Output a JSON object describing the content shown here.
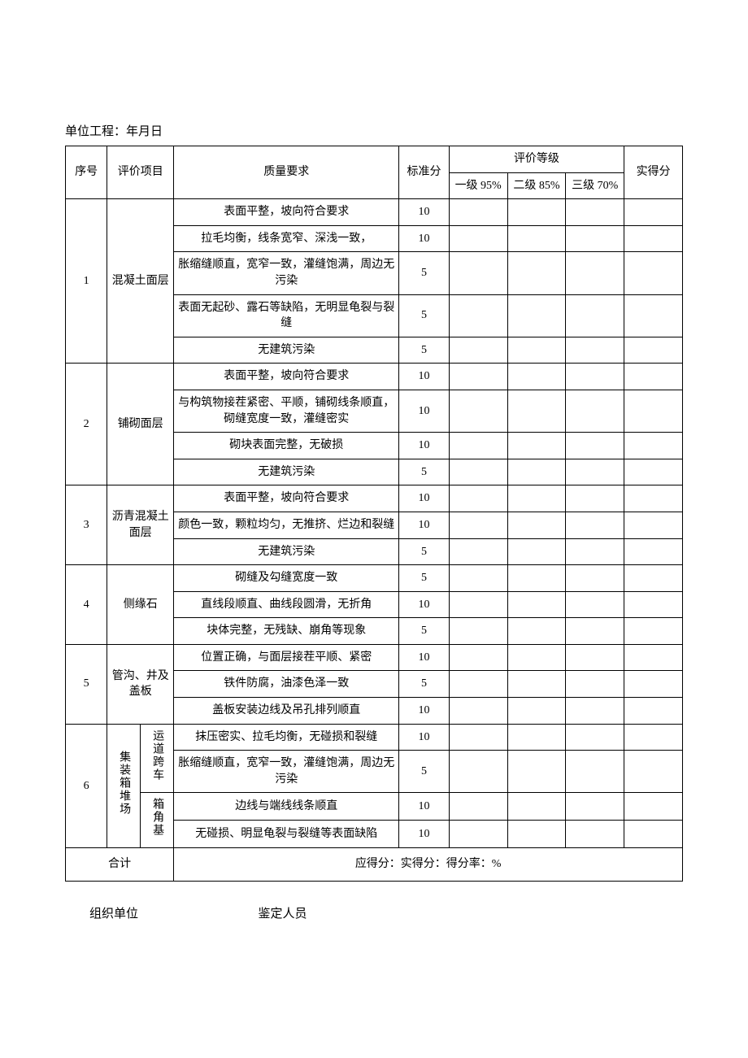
{
  "header": "单位工程：年月日",
  "columns": {
    "seq": "序号",
    "item": "评价项目",
    "req": "质量要求",
    "std": "标准分",
    "grade_group": "评价等级",
    "g1": "一级 95%",
    "g2": "二级 85%",
    "g3": "三级 70%",
    "actual": "实得分"
  },
  "sections": [
    {
      "seq": "1",
      "item": "混凝土面层",
      "rows": [
        {
          "req": "表面平整，坡向符合要求",
          "std": "10"
        },
        {
          "req": "拉毛均衡，线条宽窄、深浅一致，",
          "std": "10"
        },
        {
          "req": "胀缩缝顺直，宽窄一致，灌缝饱满，周边无污染",
          "std": "5"
        },
        {
          "req": "表面无起砂、露石等缺陷，无明显龟裂与裂缝",
          "std": "5"
        },
        {
          "req": "无建筑污染",
          "std": "5"
        }
      ]
    },
    {
      "seq": "2",
      "item": "铺砌面层",
      "rows": [
        {
          "req": "表面平整，坡向符合要求",
          "std": "10"
        },
        {
          "req": "与构筑物接茬紧密、平顺，铺砌线条顺直，砌缝宽度一致，灌缝密实",
          "std": "10"
        },
        {
          "req": "砌块表面完整，无破损",
          "std": "10"
        },
        {
          "req": "无建筑污染",
          "std": "5"
        }
      ]
    },
    {
      "seq": "3",
      "item": "沥青混凝土面层",
      "rows": [
        {
          "req": "表面平整，坡向符合要求",
          "std": "10"
        },
        {
          "req": "颜色一致，颗粒均匀，无推挤、烂边和裂缝",
          "std": "10"
        },
        {
          "req": "无建筑污染",
          "std": "5"
        }
      ]
    },
    {
      "seq": "4",
      "item": "侧缘石",
      "rows": [
        {
          "req": "砌缝及勾缝宽度一致",
          "std": "5"
        },
        {
          "req": "直线段顺直、曲线段圆滑，无折角",
          "std": "10"
        },
        {
          "req": "块体完整，无残缺、崩角等现象",
          "std": "5"
        }
      ]
    },
    {
      "seq": "5",
      "item": "管沟、井及盖板",
      "rows": [
        {
          "req": "位置正确，与面层接茬平顺、紧密",
          "std": "10"
        },
        {
          "req": "铁件防腐，油漆色泽一致",
          "std": "5"
        },
        {
          "req": "盖板安装边线及吊孔排列顺直",
          "std": "10"
        }
      ]
    }
  ],
  "section6": {
    "seq": "6",
    "item_main": "集装箱堆场",
    "sub1": "运道跨车",
    "sub2": "箱角基",
    "rows_sub1": [
      {
        "req": "抹压密实、拉毛均衡，无碰损和裂缝",
        "std": "10"
      },
      {
        "req": "胀缩缝顺直，宽窄一致，灌缝饱满，周边无污染",
        "std": "5"
      }
    ],
    "rows_sub2": [
      {
        "req": "边线与端线线条顺直",
        "std": "10"
      },
      {
        "req": "无碰损、明显龟裂与裂缝等表面缺陷",
        "std": "10"
      }
    ]
  },
  "total_label": "合计",
  "summary": "应得分：实得分：得分率：%",
  "footer": {
    "org": "组织单位",
    "staff": "鉴定人员"
  }
}
